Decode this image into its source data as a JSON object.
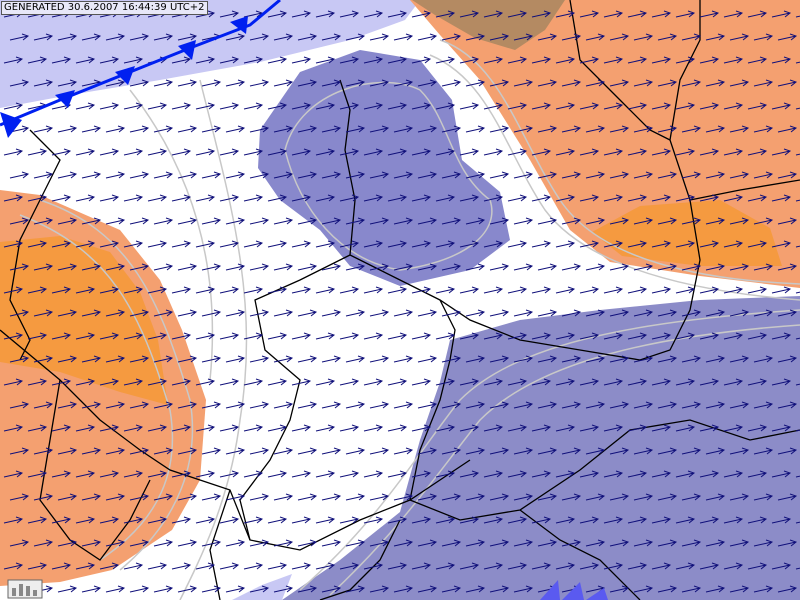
{
  "header": {
    "generated": "GENERATED 30.6.2007 16:44:39 UTC+2"
  }
}
